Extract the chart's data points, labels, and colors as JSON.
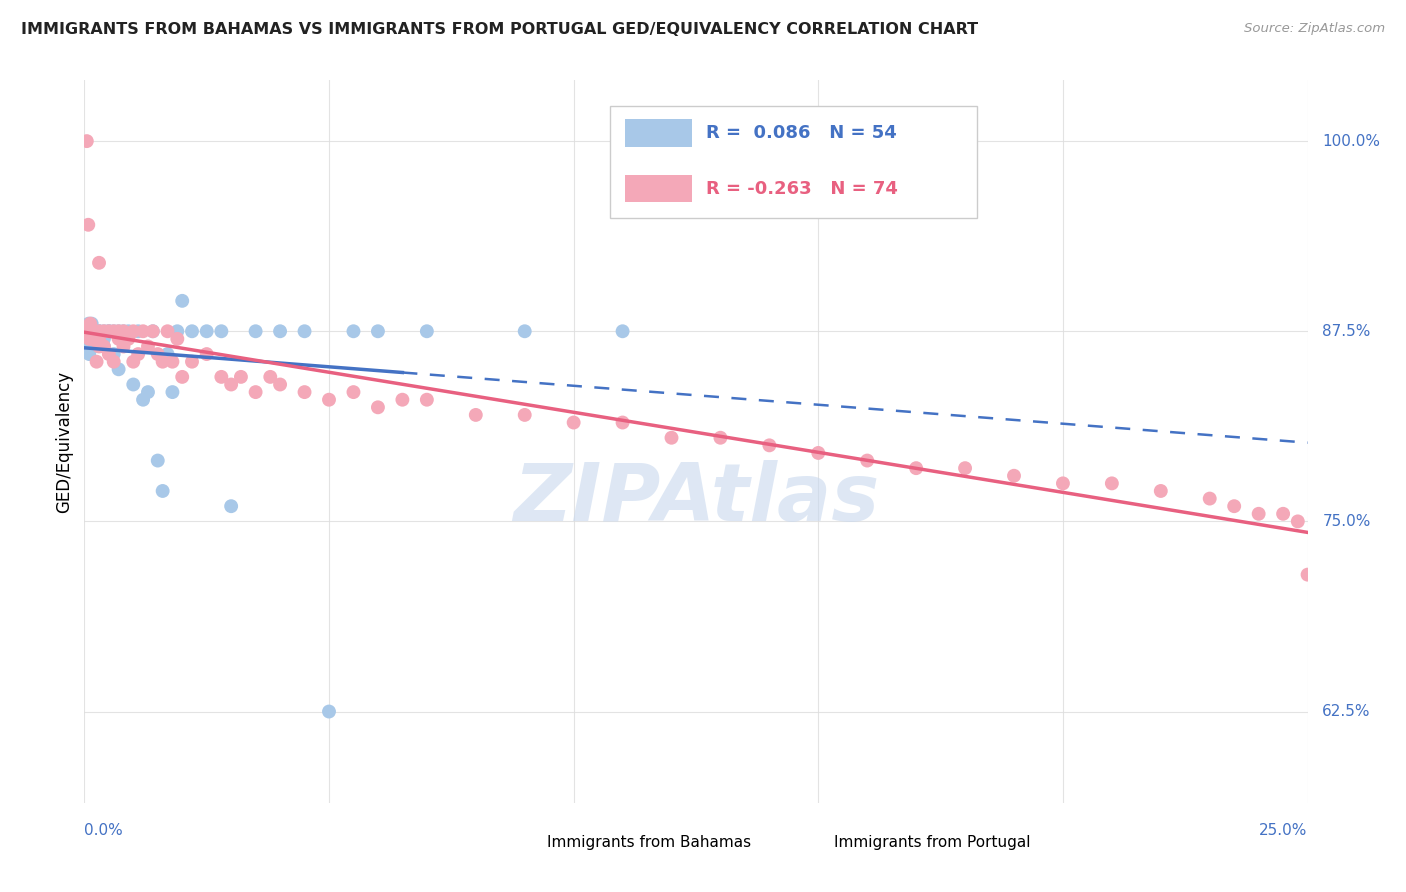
{
  "title": "IMMIGRANTS FROM BAHAMAS VS IMMIGRANTS FROM PORTUGAL GED/EQUIVALENCY CORRELATION CHART",
  "source": "Source: ZipAtlas.com",
  "ylabel_label": "GED/Equivalency",
  "r_bahamas": 0.086,
  "n_bahamas": 54,
  "r_portugal": -0.263,
  "n_portugal": 74,
  "color_bahamas": "#a8c8e8",
  "color_portugal": "#f4a8b8",
  "line_color_bahamas": "#4472c4",
  "line_color_portugal": "#e86080",
  "watermark_color": "#c8d8ee",
  "background_color": "#ffffff",
  "title_color": "#222222",
  "axis_label_color": "#4472c4",
  "x_min": 0.0,
  "x_max": 0.25,
  "y_min": 0.565,
  "y_max": 1.04,
  "bahamas_x": [
    0.0008,
    0.0008,
    0.0009,
    0.001,
    0.001,
    0.001,
    0.0012,
    0.0012,
    0.0015,
    0.0015,
    0.0018,
    0.002,
    0.002,
    0.002,
    0.0025,
    0.003,
    0.003,
    0.003,
    0.004,
    0.004,
    0.004,
    0.005,
    0.005,
    0.006,
    0.006,
    0.007,
    0.007,
    0.008,
    0.008,
    0.009,
    0.01,
    0.011,
    0.012,
    0.013,
    0.014,
    0.015,
    0.016,
    0.017,
    0.018,
    0.019,
    0.02,
    0.022,
    0.025,
    0.028,
    0.03,
    0.035,
    0.04,
    0.045,
    0.05,
    0.055,
    0.06,
    0.07,
    0.09,
    0.11
  ],
  "bahamas_y": [
    0.875,
    0.87,
    0.88,
    0.86,
    0.875,
    0.87,
    0.875,
    0.865,
    0.88,
    0.875,
    0.875,
    0.87,
    0.865,
    0.875,
    0.87,
    0.875,
    0.87,
    0.875,
    0.87,
    0.865,
    0.875,
    0.875,
    0.875,
    0.875,
    0.86,
    0.85,
    0.875,
    0.875,
    0.87,
    0.875,
    0.84,
    0.875,
    0.83,
    0.835,
    0.875,
    0.79,
    0.77,
    0.86,
    0.835,
    0.875,
    0.895,
    0.875,
    0.875,
    0.875,
    0.76,
    0.875,
    0.875,
    0.875,
    0.625,
    0.875,
    0.875,
    0.875,
    0.875,
    0.875
  ],
  "portugal_x": [
    0.0008,
    0.001,
    0.001,
    0.0012,
    0.0015,
    0.002,
    0.002,
    0.002,
    0.0025,
    0.003,
    0.003,
    0.003,
    0.004,
    0.004,
    0.005,
    0.005,
    0.006,
    0.006,
    0.007,
    0.007,
    0.008,
    0.008,
    0.009,
    0.01,
    0.01,
    0.011,
    0.012,
    0.013,
    0.014,
    0.015,
    0.016,
    0.017,
    0.018,
    0.019,
    0.02,
    0.022,
    0.025,
    0.028,
    0.03,
    0.032,
    0.035,
    0.038,
    0.04,
    0.045,
    0.05,
    0.055,
    0.06,
    0.065,
    0.07,
    0.08,
    0.09,
    0.1,
    0.11,
    0.12,
    0.13,
    0.14,
    0.15,
    0.16,
    0.17,
    0.18,
    0.19,
    0.2,
    0.21,
    0.22,
    0.23,
    0.235,
    0.24,
    0.245,
    0.248,
    0.25,
    0.0005,
    0.0008,
    0.0015,
    0.003
  ],
  "portugal_y": [
    0.875,
    0.875,
    0.87,
    0.88,
    0.87,
    0.875,
    0.87,
    0.875,
    0.855,
    0.875,
    0.865,
    0.87,
    0.875,
    0.865,
    0.875,
    0.86,
    0.875,
    0.855,
    0.87,
    0.875,
    0.865,
    0.875,
    0.87,
    0.875,
    0.855,
    0.86,
    0.875,
    0.865,
    0.875,
    0.86,
    0.855,
    0.875,
    0.855,
    0.87,
    0.845,
    0.855,
    0.86,
    0.845,
    0.84,
    0.845,
    0.835,
    0.845,
    0.84,
    0.835,
    0.83,
    0.835,
    0.825,
    0.83,
    0.83,
    0.82,
    0.82,
    0.815,
    0.815,
    0.805,
    0.805,
    0.8,
    0.795,
    0.79,
    0.785,
    0.785,
    0.78,
    0.775,
    0.775,
    0.77,
    0.765,
    0.76,
    0.755,
    0.755,
    0.75,
    0.715,
    1.0,
    0.945,
    0.87,
    0.92
  ],
  "legend_r1_text": "R =  0.086   N = 54",
  "legend_r2_text": "R = -0.263   N = 74",
  "legend_r1_val": "0.086",
  "legend_r2_val": "-0.263",
  "legend_n1": "54",
  "legend_n2": "74"
}
